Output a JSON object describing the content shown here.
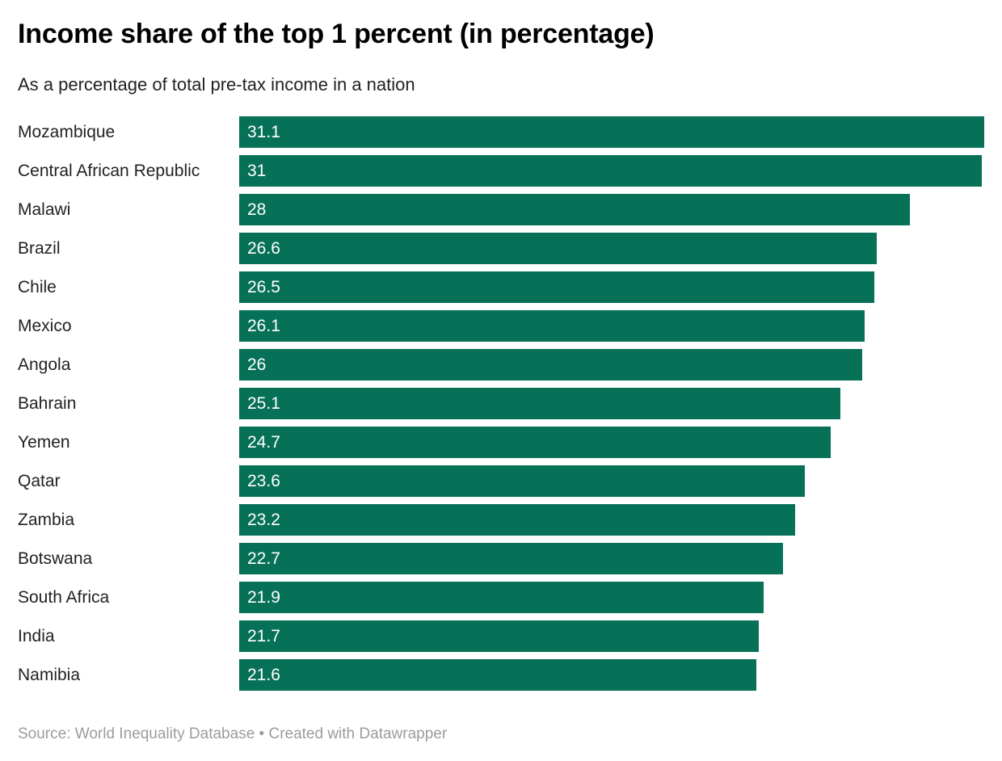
{
  "header": {
    "title": "Income share of the top 1 percent (in percentage)",
    "subtitle": "As a percentage of total pre-tax income in a nation"
  },
  "footer": {
    "source": "Source: World Inequality Database • Created with Datawrapper"
  },
  "chart_data": {
    "type": "bar",
    "orientation": "horizontal",
    "title": "Income share of the top 1 percent (in percentage)",
    "subtitle": "As a percentage of total pre-tax income in a nation",
    "categories": [
      "Mozambique",
      "Central African Republic",
      "Malawi",
      "Brazil",
      "Chile",
      "Mexico",
      "Angola",
      "Bahrain",
      "Yemen",
      "Qatar",
      "Zambia",
      "Botswana",
      "South Africa",
      "India",
      "Namibia"
    ],
    "values": [
      31.1,
      31,
      28,
      26.6,
      26.5,
      26.1,
      26,
      25.1,
      24.7,
      23.6,
      23.2,
      22.7,
      21.9,
      21.7,
      21.6
    ],
    "xlabel": "",
    "ylabel": "",
    "xlim": [
      0,
      31.1
    ],
    "grid": false,
    "legend": false,
    "value_labels_inside_bars": true,
    "bar_color": "#077158",
    "value_label_color": "#ffffff",
    "category_label_color": "#222222"
  }
}
